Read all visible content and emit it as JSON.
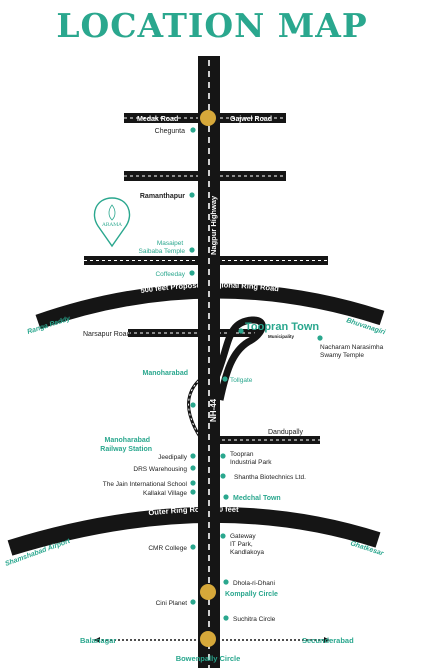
{
  "title": "LOCATION MAP",
  "brand": {
    "name": "ARAMA"
  },
  "colors": {
    "accent": "#2aa78e",
    "road": "#151515",
    "circle": "#d6a83a",
    "road_dash": "#ffffff"
  },
  "highway": {
    "name": "Nagpur Highway",
    "code": "NH-44"
  },
  "roads": {
    "medak": "Medak Road",
    "gajwel": "Gajwel Road",
    "regional_ring": "500 feet Proposed Regional Ring Road",
    "outer_ring": "Outer Ring Road  500 feet",
    "narsapur": "Narsapur Road",
    "dandupally": "Dandupally"
  },
  "directions": {
    "ranga_reddy": "Ranga Reddy",
    "bhuvanagiri": "Bhuvanagiri",
    "shamshabad": "Shamshabad Airport",
    "ghatkesar": "Ghatkesar",
    "balanagar": "Balanagar",
    "secunderabad": "Secunderabad",
    "bowenpally": "Bowenpally Circle"
  },
  "places": {
    "chegunta": "Chegunta",
    "ramanthapur": "Ramanthapur",
    "masaipet": "Masaipet\nSaibaba Temple",
    "coffeeday": "Coffeeday",
    "toopran_town": "Toopran Town",
    "municipality": "Municipality",
    "nacharam": "Nacharam Narasimha\nSwamy Temple",
    "tollgate": "Tollgate",
    "manoharabad": "Manoharabad",
    "manoharabad_station": "Manoharabad\nRailway Station",
    "jeedipally": "Jeedipally",
    "toopran_ip": "Toopran\nIndustrial Park",
    "drs": "DRS Warehousing",
    "shantha": "Shantha Biotechnics Ltd.",
    "jain": "The Jain International School",
    "kallakal": "Kallakal Village",
    "medchal": "Medchal Town",
    "cmr": "CMR College",
    "gateway": "Gateway\nIT Park,\nKandlakoya",
    "dhola": "Dhola-ri-Dhani",
    "kompally": "Kompally Circle",
    "cini": "Cini Planet",
    "suchitra": "Suchitra Circle"
  }
}
